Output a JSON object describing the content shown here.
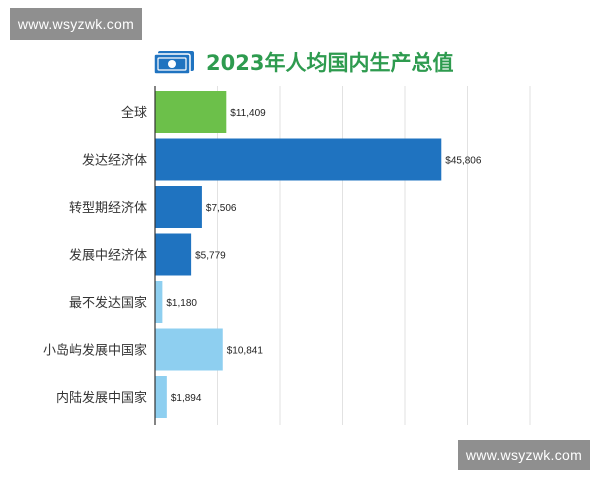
{
  "watermark_top": "www.wsyzwk.com",
  "watermark_bottom": "www.wsyzwk.com",
  "title": "2023年人均国内生产总值",
  "icon": "money-bill-icon",
  "colors": {
    "title": "#2e9b4f",
    "world": "#6cc04a",
    "developed": "#1f73c0",
    "light": "#8ecff0",
    "icon": "#1f73c0"
  },
  "chart_data": {
    "type": "bar",
    "orientation": "horizontal",
    "title": "2023年人均国内生产总值",
    "categories": [
      "全球",
      "发达经济体",
      "转型期经济体",
      "发展中经济体",
      "最不发达国家",
      "小岛屿发展中国家",
      "内陆发展中国家"
    ],
    "values": [
      11409,
      45806,
      7506,
      5779,
      1180,
      10841,
      1894
    ],
    "value_labels": [
      "$11,409",
      "$45,806",
      "$7,506",
      "$5,779",
      "$1,180",
      "$10,841",
      "$1,894"
    ],
    "bar_colors": [
      "#6cc04a",
      "#1f73c0",
      "#1f73c0",
      "#1f73c0",
      "#8ecff0",
      "#8ecff0",
      "#8ecff0"
    ],
    "xlim": [
      0,
      60000
    ],
    "grid": true
  }
}
